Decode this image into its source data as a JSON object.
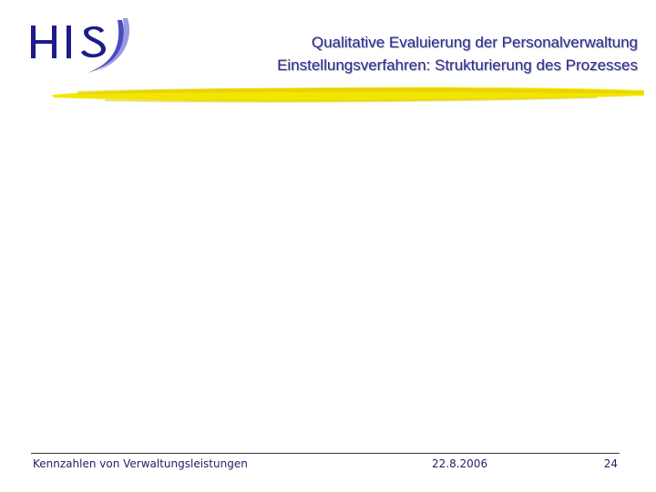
{
  "header": {
    "logo_text": "HIS",
    "title_line1": "Qualitative Evaluierung der Personalverwaltung",
    "title_line2": "Einstellungsverfahren:  Strukturierung des Prozesses"
  },
  "footer": {
    "left": "Kennzahlen von Verwaltungsleistungen",
    "center": "22.8.2006",
    "right": "24"
  },
  "colors": {
    "logo_blue": "#1c1c8a",
    "title_blue": "#2a2a8c",
    "accent_yellow": "#f2e600"
  }
}
